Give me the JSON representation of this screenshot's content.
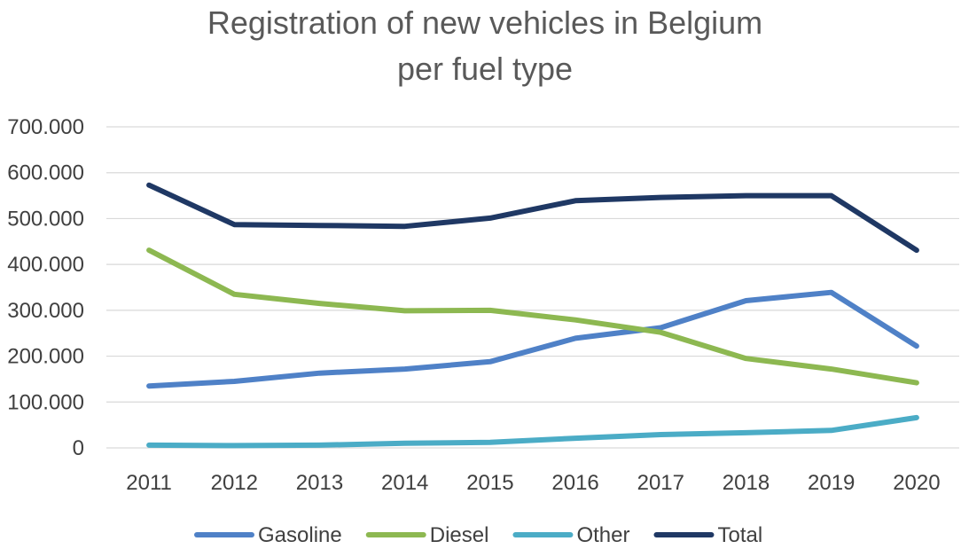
{
  "chart_data": {
    "type": "line",
    "title_lines": [
      "Registration of new vehicles in Belgium",
      "per fuel type"
    ],
    "xlabel": "",
    "ylabel": "",
    "ylim": [
      0,
      700000
    ],
    "y_ticks": [
      0,
      100000,
      200000,
      300000,
      400000,
      500000,
      600000,
      700000
    ],
    "y_tick_labels": [
      "0",
      "100.000",
      "200.000",
      "300.000",
      "400.000",
      "500.000",
      "600.000",
      "700.000"
    ],
    "categories": [
      "2011",
      "2012",
      "2013",
      "2014",
      "2015",
      "2016",
      "2017",
      "2018",
      "2019",
      "2020"
    ],
    "grid": "horizontal",
    "legend_position": "bottom",
    "series": [
      {
        "name": "Gasoline",
        "color": "#4f81c7",
        "values": [
          135000,
          145000,
          163000,
          172000,
          188000,
          239000,
          262000,
          321000,
          339000,
          222000
        ]
      },
      {
        "name": "Diesel",
        "color": "#8db851",
        "values": [
          431000,
          335000,
          315000,
          299000,
          300000,
          279000,
          252000,
          195000,
          172000,
          142000
        ]
      },
      {
        "name": "Other",
        "color": "#4bacc6",
        "values": [
          6000,
          5000,
          6000,
          10000,
          12000,
          21000,
          29000,
          33000,
          38000,
          66000
        ]
      },
      {
        "name": "Total",
        "color": "#1f3864",
        "values": [
          573000,
          487000,
          485000,
          483000,
          501000,
          539000,
          546000,
          550000,
          550000,
          431000
        ]
      }
    ]
  }
}
